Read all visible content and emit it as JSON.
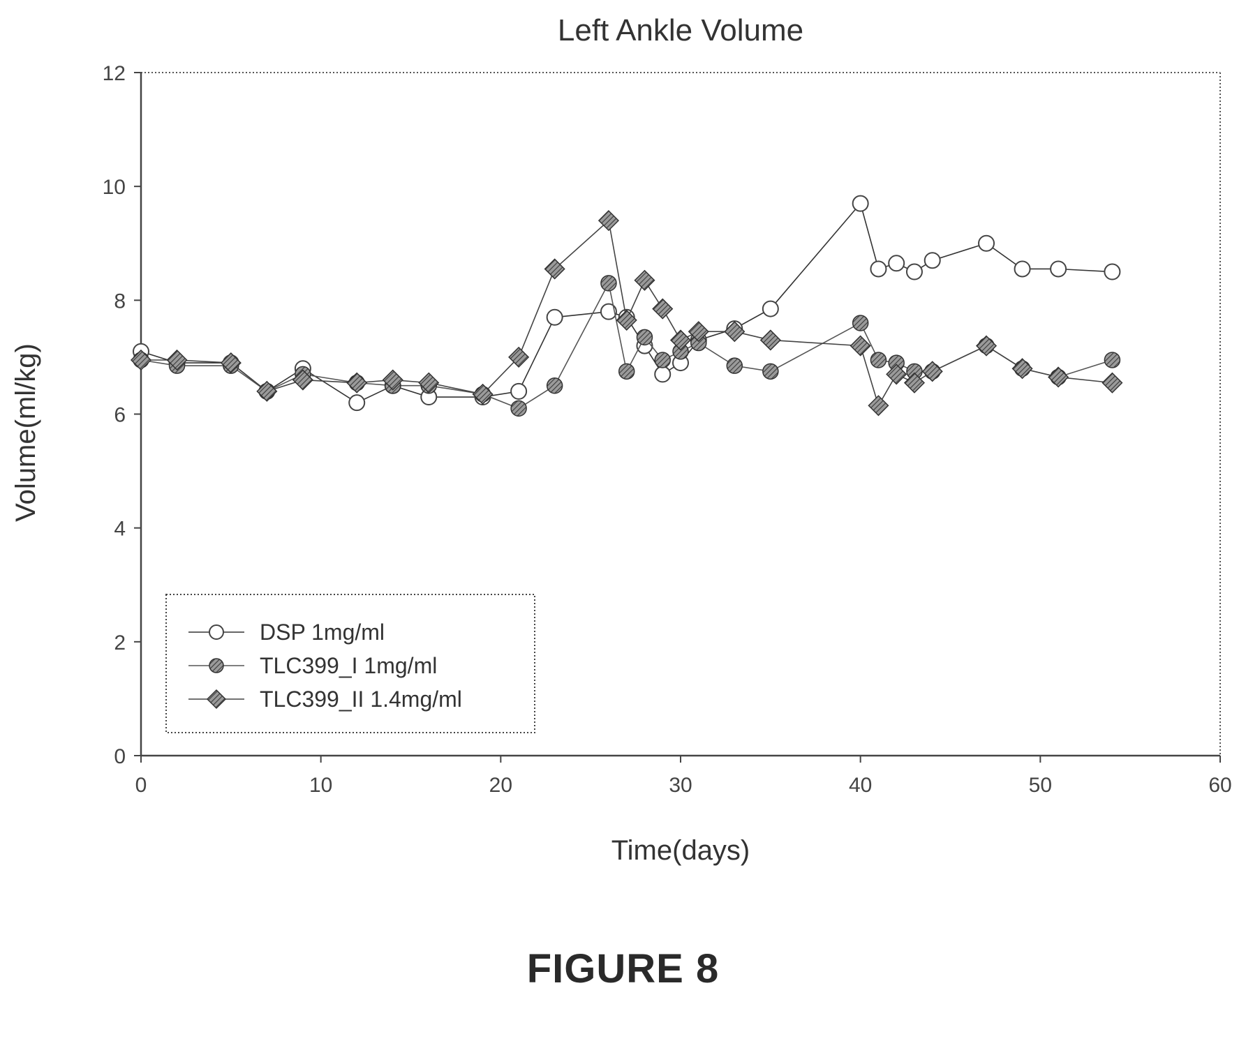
{
  "figure_caption": "FIGURE 8",
  "chart_data": {
    "type": "line",
    "title": "Left Ankle Volume",
    "xlabel": "Time(days)",
    "ylabel": "Volume(ml/kg)",
    "xlim": [
      0,
      60
    ],
    "ylim": [
      0,
      12
    ],
    "xticks": [
      0,
      10,
      20,
      30,
      40,
      50,
      60
    ],
    "yticks": [
      0,
      2,
      4,
      6,
      8,
      10,
      12
    ],
    "grid": false,
    "legend_position": "bottom-left",
    "series": [
      {
        "name": "DSP 1mg/ml",
        "marker": "circle-open",
        "color": "#333333",
        "x": [
          0,
          2,
          5,
          7,
          9,
          12,
          14,
          16,
          19,
          21,
          23,
          26,
          27,
          28,
          29,
          30,
          31,
          33,
          35,
          40,
          41,
          42,
          43,
          44,
          47,
          49,
          51,
          54
        ],
        "y": [
          7.1,
          6.9,
          6.9,
          6.4,
          6.8,
          6.2,
          6.5,
          6.3,
          6.3,
          6.4,
          7.7,
          7.8,
          7.7,
          7.2,
          6.7,
          6.9,
          7.3,
          7.5,
          7.85,
          9.7,
          8.55,
          8.65,
          8.5,
          8.7,
          9.0,
          8.55,
          8.55,
          8.5
        ]
      },
      {
        "name": "TLC399_I  1mg/ml",
        "marker": "circle-filled",
        "color": "#555555",
        "x": [
          0,
          2,
          5,
          7,
          9,
          12,
          14,
          16,
          19,
          21,
          23,
          26,
          27,
          28,
          29,
          30,
          31,
          33,
          35,
          40,
          41,
          42,
          43,
          44,
          47,
          49,
          51,
          54
        ],
        "y": [
          6.95,
          6.85,
          6.85,
          6.4,
          6.7,
          6.55,
          6.5,
          6.5,
          6.35,
          6.1,
          6.5,
          8.3,
          6.75,
          7.35,
          6.95,
          7.1,
          7.25,
          6.85,
          6.75,
          7.6,
          6.95,
          6.9,
          6.75,
          6.75,
          7.2,
          6.8,
          6.65,
          6.95
        ]
      },
      {
        "name": "TLC399_II  1.4mg/ml",
        "marker": "diamond-filled",
        "color": "#444444",
        "x": [
          0,
          2,
          5,
          7,
          9,
          12,
          14,
          16,
          19,
          21,
          23,
          26,
          27,
          28,
          29,
          30,
          31,
          33,
          35,
          40,
          41,
          42,
          43,
          44,
          47,
          49,
          51,
          54
        ],
        "y": [
          6.95,
          6.95,
          6.9,
          6.4,
          6.6,
          6.55,
          6.6,
          6.55,
          6.35,
          7.0,
          8.55,
          9.4,
          7.65,
          8.35,
          7.85,
          7.3,
          7.45,
          7.45,
          7.3,
          7.2,
          6.15,
          6.7,
          6.55,
          6.75,
          7.2,
          6.8,
          6.65,
          6.55
        ]
      }
    ]
  }
}
